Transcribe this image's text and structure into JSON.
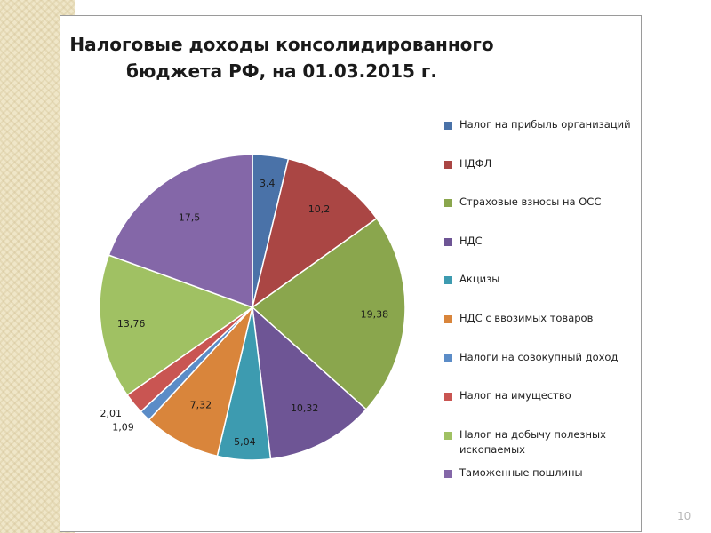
{
  "slide": {
    "page_number": "10"
  },
  "chart_data": {
    "type": "pie",
    "title_lines": [
      "Налоговые доходы консолидированного",
      "бюджета РФ, на 01.03.2015 г."
    ],
    "categories": [
      "Налог на прибыль организаций",
      "НДФЛ",
      "Страховые взносы на ОСС",
      "НДС",
      "Акцизы",
      "НДС с ввозимых товаров",
      "Налоги на совокупный доход",
      "Налог на имущество",
      "Налог на добычу полезных ископаемых",
      "Таможенные пошлины"
    ],
    "legend_lines": [
      [
        "Налог на прибыль организаций"
      ],
      [
        "НДФЛ"
      ],
      [
        "Страховые взносы на ОСС"
      ],
      [
        "НДС"
      ],
      [
        "Акцизы"
      ],
      [
        "НДС с ввозимых товаров"
      ],
      [
        "Налоги на совокупный доход"
      ],
      [
        "Налог на имущество"
      ],
      [
        "Налог на добычу полезных",
        "ископаемых"
      ],
      [
        "Таможенные пошлины"
      ]
    ],
    "values": [
      3.4,
      10.2,
      19.38,
      10.32,
      5.04,
      7.32,
      1.09,
      2.01,
      13.76,
      17.5
    ],
    "labels": [
      "3,4",
      "10,2",
      "19,38",
      "10,32",
      "5,04",
      "7,32",
      "1,09",
      "2,01",
      "13,76",
      "17,5"
    ],
    "colors": [
      "#4a72a8",
      "#aa4644",
      "#8aa64d",
      "#6e5595",
      "#3d9bb0",
      "#d9853b",
      "#5b8cc7",
      "#c95552",
      "#a0c163",
      "#8467a8"
    ],
    "legend_position": "right"
  }
}
